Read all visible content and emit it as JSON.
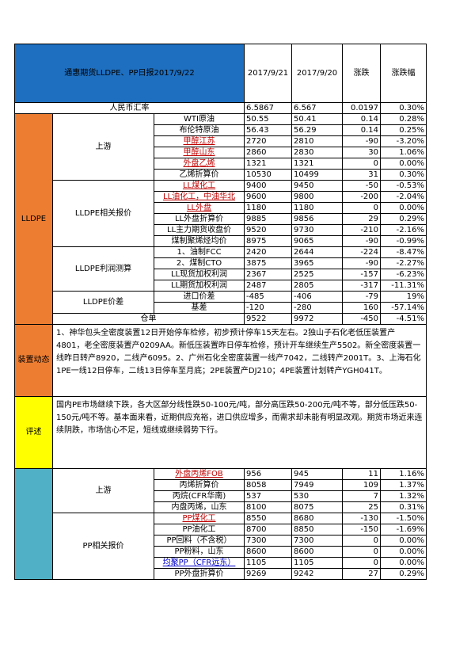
{
  "header": {
    "title": "通惠期货LLDPE、PP日报2017/9/22",
    "col_date1": "2017/9/21",
    "col_date2": "2017/9/20",
    "col_change": "涨跌",
    "col_change_pct": "涨跌幅"
  },
  "fx": {
    "label": "人民币汇率",
    "v1": "6.5867",
    "v2": "6.567",
    "chg": "0.0197",
    "pct": "0.30%"
  },
  "lldpe": {
    "section_label": "LLDPE",
    "upstream_label": "上游",
    "upstream": [
      {
        "name": "WTI原油",
        "v1": "50.55",
        "v2": "50.41",
        "chg": "0.14",
        "pct": "0.28%",
        "style": ""
      },
      {
        "name": "布伦特原油",
        "v1": "56.43",
        "v2": "56.29",
        "chg": "0.14",
        "pct": "0.25%",
        "style": ""
      },
      {
        "name": "甲醇江苏",
        "v1": "2720",
        "v2": "2810",
        "chg": "-90",
        "pct": "-3.20%",
        "style": "red"
      },
      {
        "name": "甲醇山东",
        "v1": "2860",
        "v2": "2830",
        "chg": "30",
        "pct": "1.06%",
        "style": "red"
      },
      {
        "name": "外盘乙烯",
        "v1": "1321",
        "v2": "1321",
        "chg": "0",
        "pct": "0.00%",
        "style": "red"
      },
      {
        "name": "乙烯折算价",
        "v1": "10530",
        "v2": "10499",
        "chg": "31",
        "pct": "0.30%",
        "style": ""
      }
    ],
    "price_label": "LLDPE相关报价",
    "prices": [
      {
        "name": "LL煤化工",
        "v1": "9400",
        "v2": "9450",
        "chg": "-50",
        "pct": "-0.53%",
        "style": "red"
      },
      {
        "name": "LL油化工，中油华北",
        "v1": "9600",
        "v2": "9800",
        "chg": "-200",
        "pct": "-2.04%",
        "style": "red"
      },
      {
        "name": "LL外盘",
        "v1": "1180",
        "v2": "1180",
        "chg": "0",
        "pct": "0.00%",
        "style": "red"
      },
      {
        "name": "LL外盘折算价",
        "v1": "9885",
        "v2": "9856",
        "chg": "29",
        "pct": "0.29%",
        "style": ""
      },
      {
        "name": "LL主力期货收盘价",
        "v1": "9520",
        "v2": "9730",
        "chg": "-210",
        "pct": "-2.16%",
        "style": ""
      },
      {
        "name": "煤制聚烯烃均价",
        "v1": "8975",
        "v2": "9065",
        "chg": "-90",
        "pct": "-0.99%",
        "style": ""
      }
    ],
    "profit_label": "LLDPE利润测算",
    "profits": [
      {
        "name": "1、油制FCC",
        "v1": "2420",
        "v2": "2644",
        "chg": "-224",
        "pct": "-8.47%"
      },
      {
        "name": "2、煤制CTO",
        "v1": "3875",
        "v2": "3965",
        "chg": "-90",
        "pct": "-2.27%"
      },
      {
        "name": "LL现货加权利润",
        "v1": "2367",
        "v2": "2525",
        "chg": "-157",
        "pct": "-6.23%"
      },
      {
        "name": "LL期货加权利润",
        "v1": "2487",
        "v2": "2805",
        "chg": "-317",
        "pct": "-11.31%"
      }
    ],
    "spread_label": "LLDPE价差",
    "spreads": [
      {
        "name": "进口价差",
        "v1": "-485",
        "v2": "-406",
        "chg": "-79",
        "pct": "19%"
      },
      {
        "name": "基差",
        "v1": "-120",
        "v2": "-280",
        "chg": "160",
        "pct": "-57.14%"
      }
    ],
    "warehouse": {
      "name": "仓单",
      "v1": "9522",
      "v2": "9972",
      "chg": "-450",
      "pct": "-4.51%"
    }
  },
  "device": {
    "label": "装置动态",
    "text": "1、神华包头全密度装置12日开始停车检修，初步预计停车15天左右。2独山子石化老低压装置产4801，老全密度装置产0209AA。新低压装置昨日停车检修，预计开车继续生产5502。新全密度装置一线昨日转产8920，二线产6095。2、广州石化全密度装置一线产7042，二线转产2001T。3、上海石化1PE一线12日停车，二线13日停车至月底；2PE装置产DJ210；4PE装置计划转产YGH041T。"
  },
  "review": {
    "label": "评述",
    "text": "国内PE市场继续下跌，各大区部分线性跌50-100元/吨，部分高压跌50-200元/吨不等，部分低压跌50-150元/吨不等。基本面来看，近期供应充裕，进口供应增多，而需求却未能有明显改观。期货市场近来连续阴跌，市场信心不足，短线或继续弱势下行。"
  },
  "pp": {
    "upstream_label": "上游",
    "upstream": [
      {
        "name": "外盘丙烯FOB",
        "v1": "956",
        "v2": "945",
        "chg": "11",
        "pct": "1.16%",
        "style": "red"
      },
      {
        "name": "丙烯折算价",
        "v1": "8058",
        "v2": "7949",
        "chg": "109",
        "pct": "1.37%",
        "style": ""
      },
      {
        "name": "丙烷(CFR华南)",
        "v1": "537",
        "v2": "530",
        "chg": "7",
        "pct": "1.32%",
        "style": ""
      },
      {
        "name": "内盘丙烯，山东",
        "v1": "8100",
        "v2": "8075",
        "chg": "25",
        "pct": "0.31%",
        "style": ""
      }
    ],
    "price_label": "PP相关报价",
    "prices": [
      {
        "name": "PP煤化工",
        "v1": "8550",
        "v2": "8680",
        "chg": "-130",
        "pct": "-1.50%",
        "style": "red"
      },
      {
        "name": "PP油化工",
        "v1": "8700",
        "v2": "8850",
        "chg": "-150",
        "pct": "-1.69%",
        "style": ""
      },
      {
        "name": "PP回料（不含税）",
        "v1": "7300",
        "v2": "7300",
        "chg": "0",
        "pct": "0.00%",
        "style": ""
      },
      {
        "name": "PP粉料，山东",
        "v1": "8600",
        "v2": "8600",
        "chg": "0",
        "pct": "0.00%",
        "style": ""
      },
      {
        "name": "均聚PP（CFR远东）",
        "v1": "1105",
        "v2": "1105",
        "chg": "0",
        "pct": "0.00%",
        "style": "blue"
      },
      {
        "name": "PP外盘折算价",
        "v1": "9269",
        "v2": "9242",
        "chg": "27",
        "pct": "0.29%",
        "style": ""
      }
    ]
  }
}
